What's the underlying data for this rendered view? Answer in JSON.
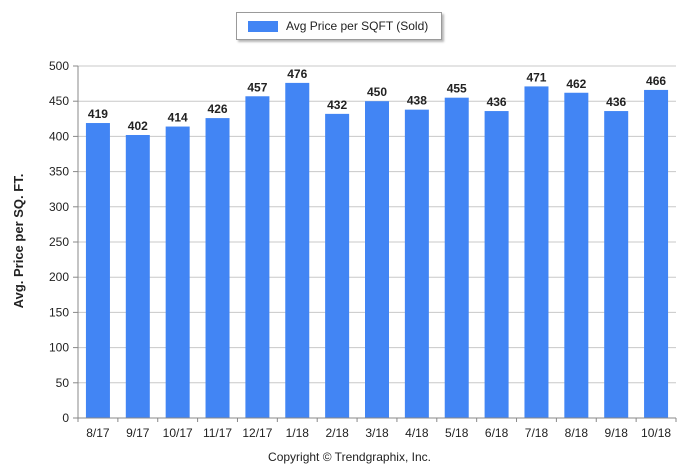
{
  "legend": {
    "label": "Avg Price per SQFT (Sold)"
  },
  "copyright": "Copyright © Trendgraphix, Inc.",
  "colors": {
    "bar": "#4285f4",
    "grid": "#c8c8c8",
    "axis": "#888888",
    "text": "#222222"
  },
  "chart_data": {
    "type": "bar",
    "title": "",
    "xlabel": "",
    "ylabel": "Avg. Price per SQ. FT.",
    "ylim": [
      0,
      500
    ],
    "yticks": [
      0,
      50,
      100,
      150,
      200,
      250,
      300,
      350,
      400,
      450,
      500
    ],
    "grid": true,
    "legend_position": "top-center",
    "categories": [
      "8/17",
      "9/17",
      "10/17",
      "11/17",
      "12/17",
      "1/18",
      "2/18",
      "3/18",
      "4/18",
      "5/18",
      "6/18",
      "7/18",
      "8/18",
      "9/18",
      "10/18"
    ],
    "series": [
      {
        "name": "Avg Price per SQFT (Sold)",
        "values": [
          419,
          402,
          414,
          426,
          457,
          476,
          432,
          450,
          438,
          455,
          436,
          471,
          462,
          436,
          466
        ]
      }
    ]
  }
}
